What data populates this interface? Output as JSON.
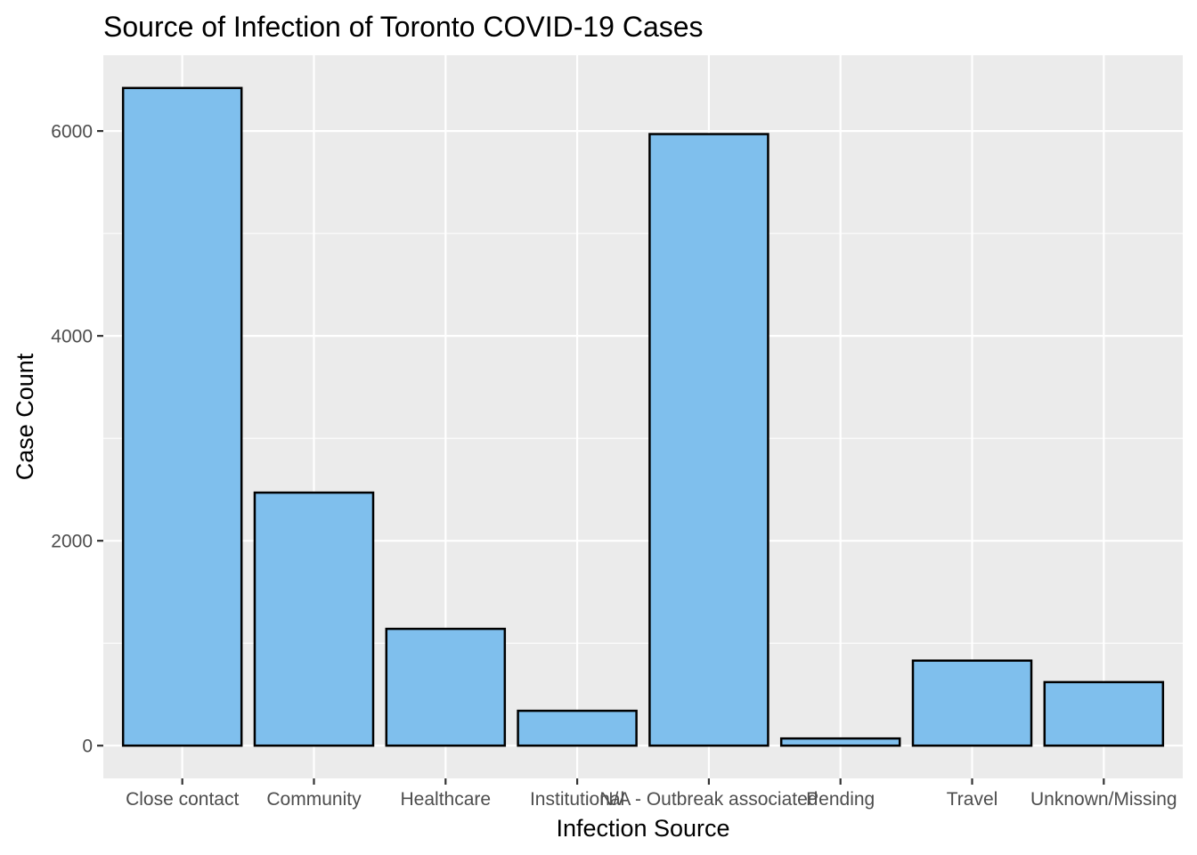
{
  "chart_data": {
    "type": "bar",
    "title": "Source of Infection of Toronto COVID-19 Cases",
    "xlabel": "Infection Source",
    "ylabel": "Case Count",
    "categories": [
      "Close contact",
      "Community",
      "Healthcare",
      "Institutional",
      "N/A - Outbreak associated",
      "Pending",
      "Travel",
      "Unknown/Missing"
    ],
    "values": [
      6420,
      2470,
      1140,
      340,
      5970,
      70,
      830,
      620
    ],
    "ylim": [
      -320,
      6740
    ],
    "yticks": [
      0,
      2000,
      4000,
      6000
    ],
    "ytick_labels": [
      "0",
      "2000",
      "4000",
      "6000"
    ],
    "bar_fill": "#7fbfed",
    "bar_stroke": "#000000",
    "panel_background": "#ebebeb",
    "grid": true
  }
}
